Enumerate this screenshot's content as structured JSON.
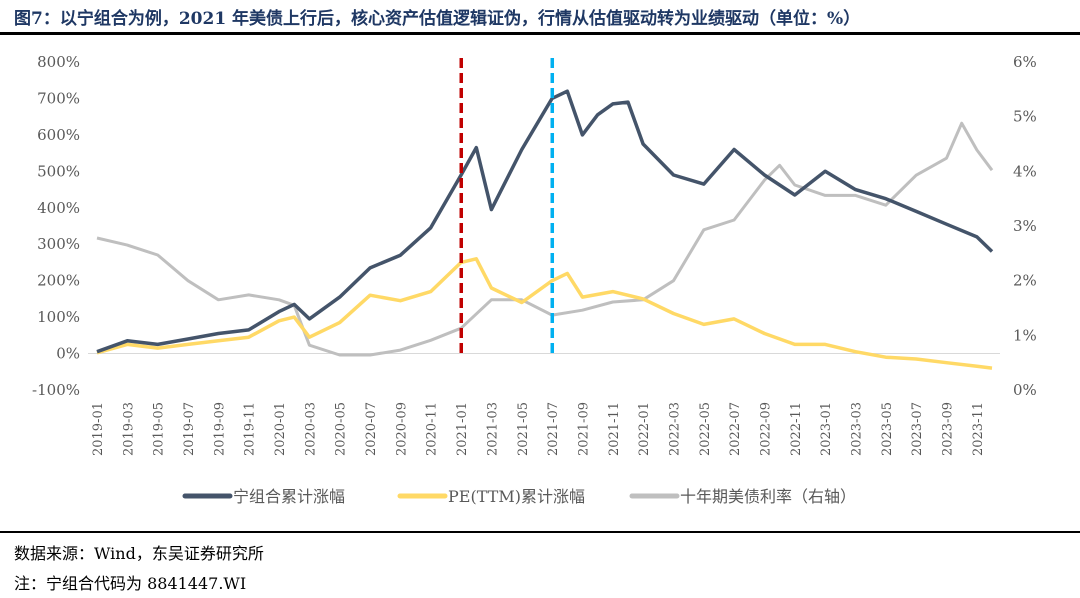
{
  "title": "图7：以宁组合为例，2021 年美债上行后，核心资产估值逻辑证伪，行情从估值驱动转为业绩驱动（单位：%）",
  "source": "数据来源：Wind，东吴证券研究所",
  "note": "注：宁组合代码为 8841447.WI",
  "chart_data": {
    "type": "line",
    "title": "",
    "x_ticks": [
      "2019-01",
      "2019-03",
      "2019-05",
      "2019-07",
      "2019-09",
      "2019-11",
      "2020-01",
      "2020-03",
      "2020-05",
      "2020-07",
      "2020-09",
      "2020-11",
      "2021-01",
      "2021-03",
      "2021-05",
      "2021-07",
      "2021-09",
      "2021-11",
      "2022-01",
      "2022-03",
      "2022-05",
      "2022-07",
      "2022-09",
      "2022-11",
      "2023-01",
      "2023-03",
      "2023-05",
      "2023-07",
      "2023-09",
      "2023-11"
    ],
    "y_left": {
      "ticks": [
        "800%",
        "700%",
        "600%",
        "500%",
        "400%",
        "300%",
        "200%",
        "100%",
        "0%",
        "-100%"
      ],
      "range": [
        -100,
        800
      ]
    },
    "y_right": {
      "ticks": [
        "6%",
        "5%",
        "4%",
        "3%",
        "2%",
        "1%",
        "0%"
      ],
      "range": [
        0,
        6
      ]
    },
    "legend_placement": "bottom",
    "grid": false,
    "vlines": [
      {
        "x": "2021-02",
        "color": "#c00000"
      },
      {
        "x": "2021-08",
        "color": "#00b0f0"
      }
    ],
    "series": [
      {
        "name": "宁组合累计涨幅",
        "axis": "left",
        "color": "#44546a",
        "x": [
          "2019-01",
          "2019-03",
          "2019-05",
          "2019-07",
          "2019-09",
          "2019-11",
          "2020-01",
          "2020-02",
          "2020-03",
          "2020-05",
          "2020-07",
          "2020-09",
          "2020-11",
          "2021-01",
          "2021-02",
          "2021-03",
          "2021-05",
          "2021-07",
          "2021-08",
          "2021-09",
          "2021-10",
          "2021-11",
          "2021-12",
          "2022-01",
          "2022-03",
          "2022-05",
          "2022-07",
          "2022-09",
          "2022-11",
          "2023-01",
          "2023-03",
          "2023-05",
          "2023-07",
          "2023-09",
          "2023-11",
          "2023-12"
        ],
        "values": [
          5,
          35,
          25,
          40,
          55,
          65,
          115,
          135,
          95,
          155,
          235,
          270,
          345,
          490,
          565,
          395,
          560,
          700,
          720,
          600,
          655,
          685,
          690,
          575,
          490,
          465,
          560,
          490,
          435,
          500,
          450,
          425,
          390,
          355,
          320,
          280
        ]
      },
      {
        "name": "PE(TTM)累计涨幅",
        "axis": "left",
        "color": "#ffd966",
        "x": [
          "2019-01",
          "2019-03",
          "2019-05",
          "2019-07",
          "2019-09",
          "2019-11",
          "2020-01",
          "2020-02",
          "2020-03",
          "2020-05",
          "2020-07",
          "2020-09",
          "2020-11",
          "2021-01",
          "2021-02",
          "2021-03",
          "2021-05",
          "2021-07",
          "2021-08",
          "2021-09",
          "2021-11",
          "2022-01",
          "2022-03",
          "2022-05",
          "2022-07",
          "2022-09",
          "2022-11",
          "2023-01",
          "2023-03",
          "2023-05",
          "2023-07",
          "2023-09",
          "2023-11",
          "2023-12"
        ],
        "values": [
          2,
          25,
          15,
          25,
          35,
          45,
          90,
          100,
          45,
          85,
          160,
          145,
          170,
          250,
          260,
          180,
          140,
          200,
          220,
          155,
          170,
          150,
          110,
          80,
          95,
          55,
          25,
          25,
          5,
          -10,
          -15,
          -25,
          -35,
          -40
        ]
      },
      {
        "name": "十年期美债利率（右轴）",
        "axis": "right",
        "color": "#bfbfbf",
        "x": [
          "2019-01",
          "2019-03",
          "2019-05",
          "2019-07",
          "2019-09",
          "2019-11",
          "2020-01",
          "2020-02",
          "2020-03",
          "2020-05",
          "2020-07",
          "2020-09",
          "2020-11",
          "2021-01",
          "2021-03",
          "2021-05",
          "2021-07",
          "2021-09",
          "2021-11",
          "2022-01",
          "2022-03",
          "2022-05",
          "2022-07",
          "2022-09",
          "2022-10",
          "2022-11",
          "2023-01",
          "2023-03",
          "2023-05",
          "2023-07",
          "2023-09",
          "2023-10",
          "2023-11",
          "2023-12"
        ],
        "values": [
          2.78,
          2.65,
          2.47,
          2.0,
          1.65,
          1.74,
          1.65,
          1.55,
          0.82,
          0.64,
          0.64,
          0.73,
          0.91,
          1.13,
          1.65,
          1.65,
          1.37,
          1.46,
          1.61,
          1.65,
          2.0,
          2.93,
          3.11,
          3.84,
          4.11,
          3.75,
          3.56,
          3.56,
          3.38,
          3.93,
          4.24,
          4.88,
          4.39,
          4.02
        ]
      }
    ]
  }
}
